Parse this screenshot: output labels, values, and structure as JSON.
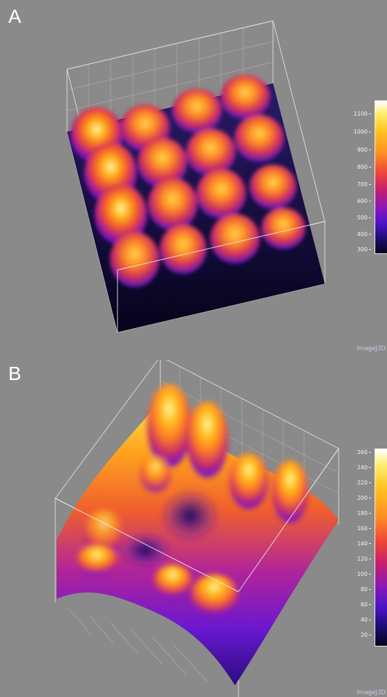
{
  "panel_a": {
    "letter": "A",
    "colorbar_ticks": [
      "1100",
      "1000",
      "900",
      "800",
      "700",
      "600",
      "500",
      "400",
      "300"
    ],
    "watermark": "ImageJ3D"
  },
  "panel_b": {
    "letter": "B",
    "colorbar_ticks": [
      "260",
      "240",
      "220",
      "200",
      "180",
      "160",
      "140",
      "120",
      "100",
      "80",
      "60",
      "40",
      "20"
    ],
    "watermark": "ImageJ3D"
  },
  "colormap": [
    "#ffffff",
    "#ffee70",
    "#ffc21e",
    "#ff9024",
    "#ef4b33",
    "#c61f6d",
    "#8a17b8",
    "#4c14c8",
    "#1f0c74",
    "#05031a"
  ]
}
